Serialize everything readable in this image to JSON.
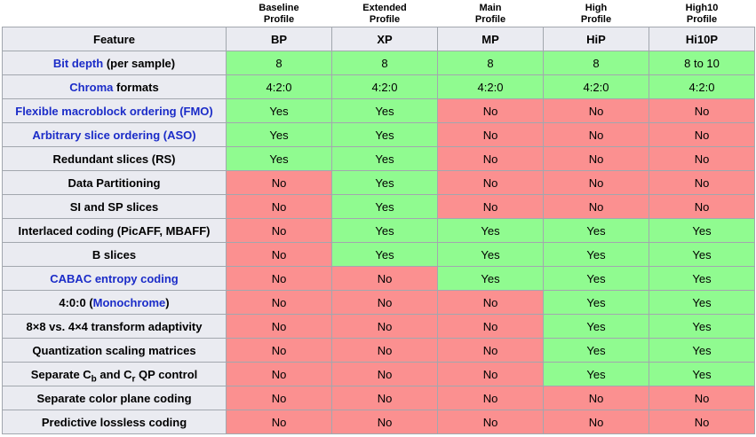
{
  "colors": {
    "yes_bg": "#90fb90",
    "no_bg": "#fb9090",
    "header_bg": "#eaebf1",
    "border": "#a2a7ae",
    "link": "#1b2cc8"
  },
  "table": {
    "feature_header": "Feature",
    "profiles": [
      {
        "name_line1": "Baseline",
        "name_line2": "Profile",
        "abbr": "BP"
      },
      {
        "name_line1": "Extended",
        "name_line2": "Profile",
        "abbr": "XP"
      },
      {
        "name_line1": "Main",
        "name_line2": "Profile",
        "abbr": "MP"
      },
      {
        "name_line1": "High",
        "name_line2": "Profile",
        "abbr": "HiP"
      },
      {
        "name_line1": "High10",
        "name_line2": "Profile",
        "abbr": "Hi10P"
      }
    ],
    "rows": [
      {
        "feature": [
          {
            "t": "Bit depth",
            "link": true
          },
          {
            "t": " (per sample)"
          }
        ],
        "values": [
          {
            "v": "8",
            "s": "yes"
          },
          {
            "v": "8",
            "s": "yes"
          },
          {
            "v": "8",
            "s": "yes"
          },
          {
            "v": "8",
            "s": "yes"
          },
          {
            "v": "8 to 10",
            "s": "yes"
          }
        ]
      },
      {
        "feature": [
          {
            "t": "Chroma",
            "link": true
          },
          {
            "t": " formats"
          }
        ],
        "values": [
          {
            "v": "4:2:0",
            "s": "yes"
          },
          {
            "v": "4:2:0",
            "s": "yes"
          },
          {
            "v": "4:2:0",
            "s": "yes"
          },
          {
            "v": "4:2:0",
            "s": "yes"
          },
          {
            "v": "4:2:0",
            "s": "yes"
          }
        ]
      },
      {
        "feature": [
          {
            "t": "Flexible macroblock ordering (FMO)",
            "link": true
          }
        ],
        "values": [
          {
            "v": "Yes",
            "s": "yes"
          },
          {
            "v": "Yes",
            "s": "yes"
          },
          {
            "v": "No",
            "s": "no"
          },
          {
            "v": "No",
            "s": "no"
          },
          {
            "v": "No",
            "s": "no"
          }
        ]
      },
      {
        "feature": [
          {
            "t": "Arbitrary slice ordering (ASO)",
            "link": true
          }
        ],
        "values": [
          {
            "v": "Yes",
            "s": "yes"
          },
          {
            "v": "Yes",
            "s": "yes"
          },
          {
            "v": "No",
            "s": "no"
          },
          {
            "v": "No",
            "s": "no"
          },
          {
            "v": "No",
            "s": "no"
          }
        ]
      },
      {
        "feature": [
          {
            "t": "Redundant slices (RS)"
          }
        ],
        "values": [
          {
            "v": "Yes",
            "s": "yes"
          },
          {
            "v": "Yes",
            "s": "yes"
          },
          {
            "v": "No",
            "s": "no"
          },
          {
            "v": "No",
            "s": "no"
          },
          {
            "v": "No",
            "s": "no"
          }
        ]
      },
      {
        "feature": [
          {
            "t": "Data Partitioning"
          }
        ],
        "values": [
          {
            "v": "No",
            "s": "no"
          },
          {
            "v": "Yes",
            "s": "yes"
          },
          {
            "v": "No",
            "s": "no"
          },
          {
            "v": "No",
            "s": "no"
          },
          {
            "v": "No",
            "s": "no"
          }
        ]
      },
      {
        "feature": [
          {
            "t": "SI and SP slices"
          }
        ],
        "values": [
          {
            "v": "No",
            "s": "no"
          },
          {
            "v": "Yes",
            "s": "yes"
          },
          {
            "v": "No",
            "s": "no"
          },
          {
            "v": "No",
            "s": "no"
          },
          {
            "v": "No",
            "s": "no"
          }
        ]
      },
      {
        "feature": [
          {
            "t": "Interlaced coding (PicAFF, MBAFF)"
          }
        ],
        "values": [
          {
            "v": "No",
            "s": "no"
          },
          {
            "v": "Yes",
            "s": "yes"
          },
          {
            "v": "Yes",
            "s": "yes"
          },
          {
            "v": "Yes",
            "s": "yes"
          },
          {
            "v": "Yes",
            "s": "yes"
          }
        ]
      },
      {
        "feature": [
          {
            "t": "B slices"
          }
        ],
        "values": [
          {
            "v": "No",
            "s": "no"
          },
          {
            "v": "Yes",
            "s": "yes"
          },
          {
            "v": "Yes",
            "s": "yes"
          },
          {
            "v": "Yes",
            "s": "yes"
          },
          {
            "v": "Yes",
            "s": "yes"
          }
        ]
      },
      {
        "feature": [
          {
            "t": "CABAC entropy coding",
            "link": true
          }
        ],
        "values": [
          {
            "v": "No",
            "s": "no"
          },
          {
            "v": "No",
            "s": "no"
          },
          {
            "v": "Yes",
            "s": "yes"
          },
          {
            "v": "Yes",
            "s": "yes"
          },
          {
            "v": "Yes",
            "s": "yes"
          }
        ]
      },
      {
        "feature": [
          {
            "t": "4:0:0 ("
          },
          {
            "t": "Monochrome",
            "link": true
          },
          {
            "t": ")"
          }
        ],
        "values": [
          {
            "v": "No",
            "s": "no"
          },
          {
            "v": "No",
            "s": "no"
          },
          {
            "v": "No",
            "s": "no"
          },
          {
            "v": "Yes",
            "s": "yes"
          },
          {
            "v": "Yes",
            "s": "yes"
          }
        ]
      },
      {
        "feature": [
          {
            "t": "8×8 vs. 4×4 transform adaptivity"
          }
        ],
        "values": [
          {
            "v": "No",
            "s": "no"
          },
          {
            "v": "No",
            "s": "no"
          },
          {
            "v": "No",
            "s": "no"
          },
          {
            "v": "Yes",
            "s": "yes"
          },
          {
            "v": "Yes",
            "s": "yes"
          }
        ]
      },
      {
        "feature": [
          {
            "t": "Quantization scaling matrices"
          }
        ],
        "values": [
          {
            "v": "No",
            "s": "no"
          },
          {
            "v": "No",
            "s": "no"
          },
          {
            "v": "No",
            "s": "no"
          },
          {
            "v": "Yes",
            "s": "yes"
          },
          {
            "v": "Yes",
            "s": "yes"
          }
        ]
      },
      {
        "feature": [
          {
            "t": "Separate C"
          },
          {
            "t": "b",
            "sub": true
          },
          {
            "t": " and C"
          },
          {
            "t": "r",
            "sub": true
          },
          {
            "t": " QP control"
          }
        ],
        "values": [
          {
            "v": "No",
            "s": "no"
          },
          {
            "v": "No",
            "s": "no"
          },
          {
            "v": "No",
            "s": "no"
          },
          {
            "v": "Yes",
            "s": "yes"
          },
          {
            "v": "Yes",
            "s": "yes"
          }
        ]
      },
      {
        "feature": [
          {
            "t": "Separate color plane coding"
          }
        ],
        "values": [
          {
            "v": "No",
            "s": "no"
          },
          {
            "v": "No",
            "s": "no"
          },
          {
            "v": "No",
            "s": "no"
          },
          {
            "v": "No",
            "s": "no"
          },
          {
            "v": "No",
            "s": "no"
          }
        ]
      },
      {
        "feature": [
          {
            "t": "Predictive lossless coding"
          }
        ],
        "values": [
          {
            "v": "No",
            "s": "no"
          },
          {
            "v": "No",
            "s": "no"
          },
          {
            "v": "No",
            "s": "no"
          },
          {
            "v": "No",
            "s": "no"
          },
          {
            "v": "No",
            "s": "no"
          }
        ]
      }
    ]
  }
}
